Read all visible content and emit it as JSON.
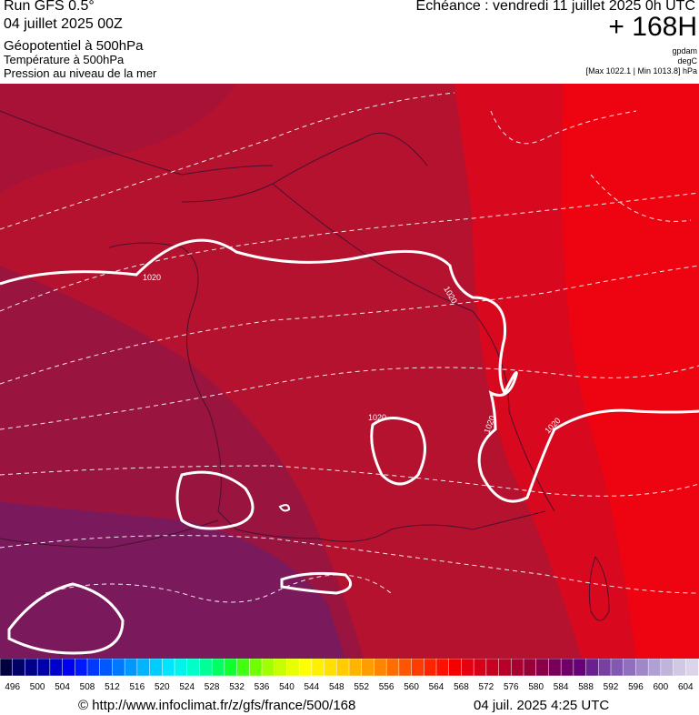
{
  "header": {
    "run": "Run GFS 0.5°",
    "date": "04 juillet 2025 00Z",
    "field1": "Géopotentiel à 500hPa",
    "field2": "Température à 500hPa",
    "field3": "Pression au niveau de la mer",
    "echeance": "Echéance : vendredi 11 juillet 2025 0h UTC",
    "hours": "+ 168H",
    "unit1": "gpdam",
    "unit2": "degC",
    "range": "[Max 1022.1 | Min 1013.8] hPa"
  },
  "map": {
    "isobar_labels": [
      "1020",
      "1020",
      "1020",
      "1020",
      "1020"
    ]
  },
  "colorbar": {
    "labels": [
      "496",
      "500",
      "504",
      "508",
      "512",
      "516",
      "520",
      "524",
      "528",
      "532",
      "536",
      "540",
      "544",
      "548",
      "552",
      "556",
      "560",
      "564",
      "568",
      "572",
      "576",
      "580",
      "584",
      "588",
      "592",
      "596",
      "600",
      "604"
    ],
    "colors": [
      "#000040",
      "#000066",
      "#000088",
      "#0000aa",
      "#0000cc",
      "#0000ee",
      "#0018ff",
      "#0038ff",
      "#0058ff",
      "#0078ff",
      "#0098ff",
      "#00b4ff",
      "#00ccff",
      "#00e4ff",
      "#00f4ec",
      "#00ffc8",
      "#00ff98",
      "#00ff60",
      "#10ff30",
      "#40ff10",
      "#70ff00",
      "#a0ff00",
      "#c8ff00",
      "#e8ff00",
      "#ffff00",
      "#fff000",
      "#ffe000",
      "#ffcc00",
      "#ffb400",
      "#ff9c00",
      "#ff8400",
      "#ff6c00",
      "#ff5400",
      "#ff3c00",
      "#ff2400",
      "#ff1000",
      "#f40000",
      "#e60010",
      "#d80018",
      "#c80020",
      "#b80028",
      "#a80030",
      "#980038",
      "#880048",
      "#780058",
      "#700068",
      "#680078",
      "#6c2090",
      "#7840a0",
      "#8458b0",
      "#9070bc",
      "#a088c8",
      "#b0a0d4",
      "#c0b4dc",
      "#d0c8e4",
      "#dcd4ea"
    ]
  },
  "footer": {
    "url": "© http://www.infoclimat.fr/z/gfs/france/500/168",
    "stamp": "04 juil. 2025  4:25 UTC"
  }
}
